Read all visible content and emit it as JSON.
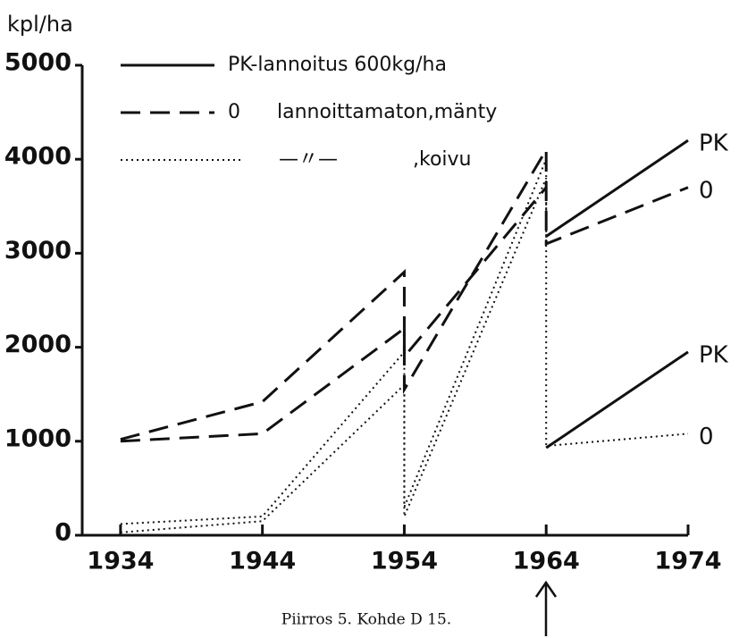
{
  "chart_data": {
    "type": "line",
    "y_label": "kpl/ha",
    "caption": "Piirros 5. Kohde D 15.",
    "xlim": [
      1931.3,
      1974
    ],
    "xticks": [
      1934,
      1944,
      1954,
      1964,
      1974
    ],
    "ylim": [
      0,
      5000
    ],
    "yticks": [
      0,
      1000,
      2000,
      3000,
      4000,
      5000
    ],
    "legend": [
      {
        "style": "solid",
        "label": "PK-lannoitus 600kg/ha"
      },
      {
        "style": "dashed",
        "marker": "0",
        "label": "lannoittamaton,mänty"
      },
      {
        "style": "dotted",
        "marker": "—〃—",
        "label": ",koivu"
      }
    ],
    "series": [
      {
        "style": "dashed",
        "color": "#111",
        "x": [
          1934,
          1944,
          1954,
          1954,
          1964,
          1964,
          1974
        ],
        "values": [
          1020,
          1420,
          2800,
          1550,
          4100,
          3100,
          3700
        ],
        "end_label": "0"
      },
      {
        "style": "dashed",
        "color": "#111",
        "x": [
          1934,
          1944,
          1954,
          1954,
          1964
        ],
        "values": [
          1000,
          1080,
          2200,
          1900,
          3700
        ]
      },
      {
        "style": "solid",
        "color": "#111",
        "x": [
          1964,
          1974
        ],
        "values": [
          3180,
          4200
        ],
        "end_label": "PK"
      },
      {
        "style": "dotted",
        "color": "#111",
        "x": [
          1934,
          1944,
          1954,
          1954,
          1964,
          1964,
          1974
        ],
        "values": [
          120,
          200,
          1950,
          300,
          4000,
          950,
          1080
        ],
        "end_label": "0"
      },
      {
        "style": "dotted",
        "color": "#111",
        "x": [
          1934,
          1944,
          1954,
          1954,
          1964,
          1964
        ],
        "values": [
          30,
          150,
          1600,
          200,
          3800,
          3100
        ]
      },
      {
        "style": "solid",
        "color": "#111",
        "x": [
          1964,
          1974
        ],
        "values": [
          930,
          1950
        ],
        "end_label": "PK"
      }
    ]
  }
}
